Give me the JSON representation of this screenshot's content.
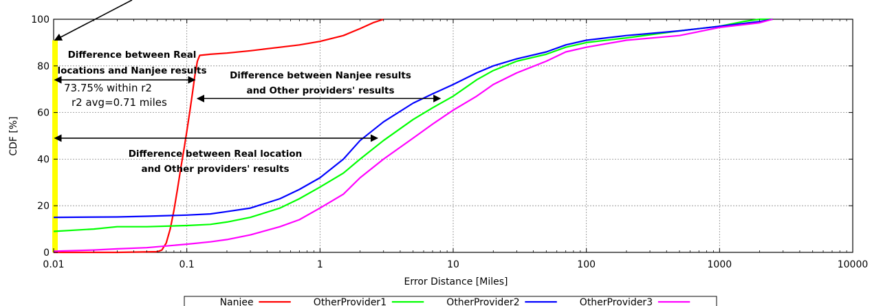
{
  "chart_data": {
    "type": "line",
    "title": "",
    "xlabel": "Error Distance [Miles]",
    "ylabel": "CDF [%]",
    "xscale": "log",
    "xlim": [
      0.01,
      10000
    ],
    "ylim": [
      0,
      100
    ],
    "x_ticks": [
      0.01,
      0.1,
      1,
      10,
      100,
      1000,
      10000
    ],
    "x_tick_labels": [
      "0.01",
      "0.1",
      "1",
      "10",
      "100",
      "1000",
      "10000"
    ],
    "y_ticks": [
      0,
      20,
      40,
      60,
      80,
      100
    ],
    "y_tick_labels": [
      "0",
      "20",
      "40",
      "60",
      "80",
      "100"
    ],
    "grid": true,
    "legend_position": "bottom-center",
    "series": [
      {
        "name": "Nanjee",
        "color": "#ff0000",
        "points": [
          [
            0.01,
            0
          ],
          [
            0.03,
            0
          ],
          [
            0.06,
            0.3
          ],
          [
            0.065,
            1
          ],
          [
            0.07,
            4
          ],
          [
            0.075,
            10
          ],
          [
            0.08,
            18
          ],
          [
            0.085,
            27
          ],
          [
            0.09,
            36
          ],
          [
            0.095,
            44
          ],
          [
            0.1,
            52
          ],
          [
            0.105,
            60
          ],
          [
            0.11,
            68
          ],
          [
            0.115,
            76
          ],
          [
            0.12,
            82
          ],
          [
            0.125,
            84.5
          ],
          [
            0.15,
            85
          ],
          [
            0.2,
            85.5
          ],
          [
            0.3,
            86.5
          ],
          [
            0.5,
            88
          ],
          [
            0.7,
            89
          ],
          [
            1,
            90.5
          ],
          [
            1.5,
            93
          ],
          [
            2,
            96
          ],
          [
            2.5,
            98.5
          ],
          [
            3,
            100
          ]
        ]
      },
      {
        "name": "OtherProvider1",
        "color": "#00ff00",
        "points": [
          [
            0.01,
            9
          ],
          [
            0.02,
            10
          ],
          [
            0.03,
            11
          ],
          [
            0.05,
            11
          ],
          [
            0.1,
            11.5
          ],
          [
            0.15,
            12
          ],
          [
            0.2,
            13
          ],
          [
            0.3,
            15
          ],
          [
            0.5,
            19
          ],
          [
            0.7,
            23
          ],
          [
            1,
            28
          ],
          [
            1.5,
            34
          ],
          [
            2,
            40
          ],
          [
            3,
            48
          ],
          [
            5,
            57
          ],
          [
            7,
            62
          ],
          [
            10,
            67
          ],
          [
            15,
            74
          ],
          [
            20,
            78
          ],
          [
            30,
            82
          ],
          [
            50,
            85
          ],
          [
            70,
            88
          ],
          [
            100,
            90
          ],
          [
            200,
            92
          ],
          [
            500,
            95
          ],
          [
            1000,
            97
          ],
          [
            1500,
            99
          ],
          [
            2000,
            100
          ],
          [
            2500,
            100
          ]
        ]
      },
      {
        "name": "OtherProvider2",
        "color": "#0000ff",
        "points": [
          [
            0.01,
            15
          ],
          [
            0.03,
            15.2
          ],
          [
            0.05,
            15.5
          ],
          [
            0.1,
            16
          ],
          [
            0.15,
            16.5
          ],
          [
            0.2,
            17.5
          ],
          [
            0.3,
            19
          ],
          [
            0.5,
            23
          ],
          [
            0.7,
            27
          ],
          [
            1,
            32
          ],
          [
            1.5,
            40
          ],
          [
            2,
            48
          ],
          [
            3,
            56
          ],
          [
            5,
            64
          ],
          [
            7,
            68
          ],
          [
            10,
            72
          ],
          [
            15,
            77
          ],
          [
            20,
            80
          ],
          [
            30,
            83
          ],
          [
            50,
            86
          ],
          [
            70,
            89
          ],
          [
            100,
            91
          ],
          [
            200,
            93
          ],
          [
            500,
            95
          ],
          [
            1000,
            97
          ],
          [
            2000,
            99
          ],
          [
            2500,
            100
          ]
        ]
      },
      {
        "name": "OtherProvider3",
        "color": "#ff00ff",
        "points": [
          [
            0.01,
            0.5
          ],
          [
            0.02,
            1
          ],
          [
            0.03,
            1.5
          ],
          [
            0.05,
            2
          ],
          [
            0.1,
            3.5
          ],
          [
            0.15,
            4.5
          ],
          [
            0.2,
            5.5
          ],
          [
            0.3,
            7.5
          ],
          [
            0.5,
            11
          ],
          [
            0.7,
            14
          ],
          [
            1,
            19
          ],
          [
            1.5,
            25
          ],
          [
            2,
            32
          ],
          [
            3,
            40
          ],
          [
            5,
            49
          ],
          [
            7,
            55
          ],
          [
            10,
            61
          ],
          [
            15,
            67
          ],
          [
            20,
            72
          ],
          [
            30,
            77
          ],
          [
            50,
            82
          ],
          [
            70,
            86
          ],
          [
            100,
            88
          ],
          [
            200,
            91
          ],
          [
            500,
            93
          ],
          [
            1000,
            96.5
          ],
          [
            2000,
            98.5
          ],
          [
            2500,
            100
          ]
        ]
      }
    ],
    "annotations": {
      "real_nanjee_line1": "Difference between Real",
      "real_nanjee_line2": "locations and Nanjee results",
      "within": "73.75% within r2",
      "avg": "r2 avg=0.71 miles",
      "nanjee_other_line1": "Difference between Nanjee results",
      "nanjee_other_line2": "and Other providers' results",
      "real_other_line1": "Difference between Real location",
      "real_other_line2": "and Other providers' results"
    }
  },
  "colors": {
    "highlight_bar": "#ffff00",
    "grid": "#888888",
    "axis": "#000000"
  }
}
